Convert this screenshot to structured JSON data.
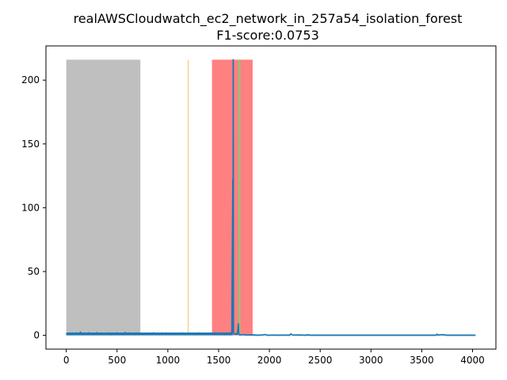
{
  "chart_data": {
    "type": "line",
    "title": "realAWSCloudwatch_ec2_network_in_257a54_isolation_forest",
    "subtitle": "F1-score:0.0753",
    "xlabel": "",
    "ylabel": "",
    "xlim": [
      -200,
      4230
    ],
    "ylim": [
      -10.8,
      226.8
    ],
    "x_ticks": [
      0,
      500,
      1000,
      1500,
      2000,
      2500,
      3000,
      3500,
      4000
    ],
    "y_ticks": [
      0,
      50,
      100,
      150,
      200
    ],
    "grid": false,
    "legend": "none",
    "regions": [
      {
        "kind": "training",
        "x_start": 0,
        "x_end": 730,
        "color": "#bfbfbf"
      },
      {
        "kind": "true-anomaly-window",
        "x_start": 1435,
        "x_end": 1835,
        "color": "#ff8080"
      }
    ],
    "vlines": [
      {
        "kind": "predicted-anomaly",
        "x": 1200,
        "color": "#f5c46a"
      },
      {
        "kind": "detected-anomaly",
        "x": 1705,
        "color": "#90c47a"
      }
    ],
    "series": [
      {
        "color": "#1f77b4",
        "points": [
          [
            0,
            0.8
          ],
          [
            20,
            1.5
          ],
          [
            40,
            0.5
          ],
          [
            60,
            1.8
          ],
          [
            80,
            0.6
          ],
          [
            100,
            1.9
          ],
          [
            120,
            0.7
          ],
          [
            140,
            2.4
          ],
          [
            160,
            0.5
          ],
          [
            180,
            1.7
          ],
          [
            200,
            0.6
          ],
          [
            220,
            2.0
          ],
          [
            240,
            0.8
          ],
          [
            260,
            1.6
          ],
          [
            280,
            0.5
          ],
          [
            300,
            2.1
          ],
          [
            320,
            0.6
          ],
          [
            340,
            1.8
          ],
          [
            360,
            0.7
          ],
          [
            380,
            1.5
          ],
          [
            400,
            0.6
          ],
          [
            420,
            1.9
          ],
          [
            440,
            0.5
          ],
          [
            460,
            1.7
          ],
          [
            480,
            0.8
          ],
          [
            500,
            2.0
          ],
          [
            520,
            0.6
          ],
          [
            540,
            1.6
          ],
          [
            560,
            0.5
          ],
          [
            580,
            2.2
          ],
          [
            600,
            0.9
          ],
          [
            620,
            1.8
          ],
          [
            640,
            0.6
          ],
          [
            660,
            1.7
          ],
          [
            680,
            0.5
          ],
          [
            700,
            1.9
          ],
          [
            720,
            0.7
          ],
          [
            740,
            1.6
          ],
          [
            760,
            0.6
          ],
          [
            780,
            1.8
          ],
          [
            800,
            0.5
          ],
          [
            820,
            1.7
          ],
          [
            840,
            0.7
          ],
          [
            860,
            2.0
          ],
          [
            880,
            0.6
          ],
          [
            900,
            1.6
          ],
          [
            920,
            0.5
          ],
          [
            940,
            1.8
          ],
          [
            960,
            0.6
          ],
          [
            980,
            1.9
          ],
          [
            1000,
            0.7
          ],
          [
            1020,
            1.6
          ],
          [
            1040,
            0.5
          ],
          [
            1060,
            1.8
          ],
          [
            1080,
            0.6
          ],
          [
            1100,
            1.7
          ],
          [
            1120,
            0.8
          ],
          [
            1140,
            1.9
          ],
          [
            1160,
            0.5
          ],
          [
            1180,
            1.6
          ],
          [
            1200,
            0.7
          ],
          [
            1220,
            1.8
          ],
          [
            1240,
            0.6
          ],
          [
            1260,
            1.7
          ],
          [
            1280,
            0.5
          ],
          [
            1300,
            1.9
          ],
          [
            1320,
            0.7
          ],
          [
            1340,
            1.6
          ],
          [
            1360,
            0.6
          ],
          [
            1380,
            1.8
          ],
          [
            1400,
            0.5
          ],
          [
            1420,
            1.7
          ],
          [
            1440,
            0.8
          ],
          [
            1460,
            1.9
          ],
          [
            1480,
            0.6
          ],
          [
            1500,
            1.6
          ],
          [
            1520,
            0.7
          ],
          [
            1540,
            1.8
          ],
          [
            1560,
            0.5
          ],
          [
            1580,
            1.7
          ],
          [
            1600,
            0.8
          ],
          [
            1620,
            1.9
          ],
          [
            1630,
            2.0
          ],
          [
            1640,
            122
          ],
          [
            1642,
            3
          ],
          [
            1644,
            216
          ],
          [
            1646,
            2
          ],
          [
            1650,
            1.5
          ],
          [
            1660,
            0.8
          ],
          [
            1670,
            1.2
          ],
          [
            1680,
            0.6
          ],
          [
            1690,
            4
          ],
          [
            1694,
            9
          ],
          [
            1698,
            1.0
          ],
          [
            1710,
            0.3
          ],
          [
            1740,
            0.5
          ],
          [
            1780,
            0.2
          ],
          [
            1830,
            0.4
          ],
          [
            1880,
            0.1
          ],
          [
            1930,
            0.3
          ],
          [
            1960,
            0.6
          ],
          [
            1980,
            0.1
          ],
          [
            2050,
            0.2
          ],
          [
            2100,
            0.1
          ],
          [
            2150,
            0.2
          ],
          [
            2200,
            0.1
          ],
          [
            2210,
            1.1
          ],
          [
            2230,
            0.2
          ],
          [
            2300,
            0.3
          ],
          [
            2350,
            0.1
          ],
          [
            2380,
            0.4
          ],
          [
            2400,
            0.1
          ],
          [
            2500,
            0.1
          ],
          [
            2600,
            0.1
          ],
          [
            2800,
            0.1
          ],
          [
            3000,
            0.1
          ],
          [
            3200,
            0.1
          ],
          [
            3400,
            0.1
          ],
          [
            3640,
            0.1
          ],
          [
            3650,
            0.9
          ],
          [
            3660,
            0.2
          ],
          [
            3700,
            0.5
          ],
          [
            3750,
            0.1
          ],
          [
            3850,
            0.1
          ],
          [
            4000,
            0.1
          ],
          [
            4030,
            0.1
          ]
        ]
      }
    ]
  }
}
